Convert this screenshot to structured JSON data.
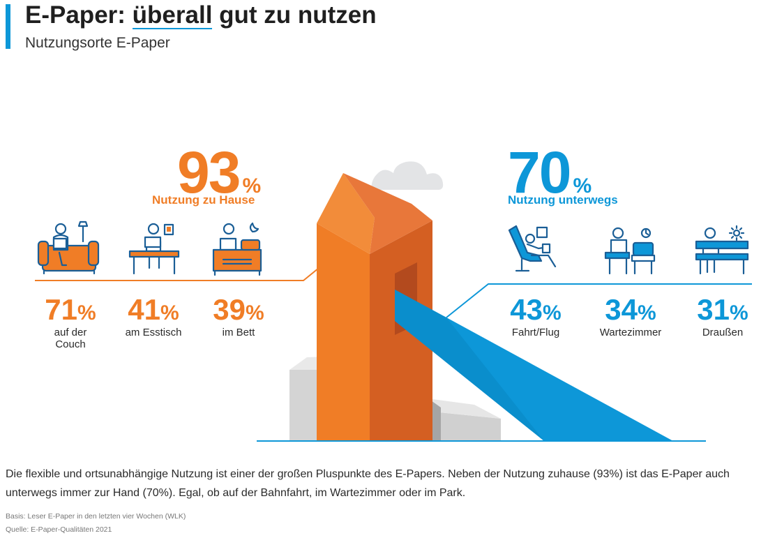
{
  "header": {
    "title_prefix": "E-Paper: ",
    "title_highlight": "überall",
    "title_suffix": " gut zu nutzen",
    "subtitle": "Nutzungsorte E-Paper"
  },
  "colors": {
    "home": "#f07d26",
    "mobile": "#0d97d8",
    "accent": "#0d97d8"
  },
  "chart_data": {
    "type": "table",
    "title": "E-Paper: überall gut zu nutzen",
    "subtitle": "Nutzungsorte E-Paper",
    "unit": "%",
    "groups": [
      {
        "name": "Nutzung zu Hause",
        "total": 93,
        "items": [
          {
            "label": "auf der Couch",
            "value": 71,
            "icon": "couch-reader-icon"
          },
          {
            "label": "am Esstisch",
            "value": 41,
            "icon": "table-reader-icon"
          },
          {
            "label": "im Bett",
            "value": 39,
            "icon": "bed-reader-icon"
          }
        ]
      },
      {
        "name": "Nutzung unterwegs",
        "total": 70,
        "items": [
          {
            "label": "Fahrt/Flug",
            "value": 43,
            "icon": "travel-seat-icon"
          },
          {
            "label": "Wartezimmer",
            "value": 34,
            "icon": "waiting-room-icon"
          },
          {
            "label": "Draußen",
            "value": 31,
            "icon": "outdoor-bench-icon"
          }
        ]
      }
    ]
  },
  "footer": {
    "description": "Die flexible und ortsunabhängige Nutzung ist einer der großen Pluspunkte des E-Papers. Neben der Nutzung zuhause (93%) ist das E-Paper auch unterwegs immer zur Hand (70%). Egal, ob auf der Bahnfahrt, im Wartezimmer oder im Park.",
    "basis": "Basis: Leser E-Paper in den letzten vier Wochen (WLK)",
    "source": "Quelle: E-Paper-Qualitäten 2021"
  }
}
